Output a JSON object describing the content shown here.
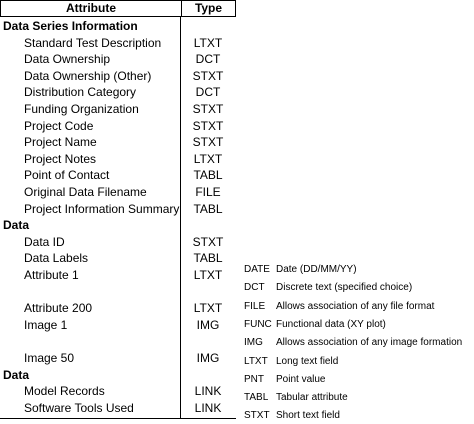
{
  "table": {
    "headers": {
      "attribute": "Attribute",
      "type": "Type"
    },
    "rows": [
      {
        "kind": "section",
        "attribute": "Data Series Information",
        "type": ""
      },
      {
        "kind": "item",
        "attribute": "Standard Test Description",
        "type": "LTXT"
      },
      {
        "kind": "item",
        "attribute": "Data Ownership",
        "type": "DCT"
      },
      {
        "kind": "item",
        "attribute": "Data Ownership (Other)",
        "type": "STXT"
      },
      {
        "kind": "item",
        "attribute": "Distribution Category",
        "type": "DCT"
      },
      {
        "kind": "item",
        "attribute": "Funding Organization",
        "type": "STXT"
      },
      {
        "kind": "item",
        "attribute": "Project Code",
        "type": "STXT"
      },
      {
        "kind": "item",
        "attribute": "Project Name",
        "type": "STXT"
      },
      {
        "kind": "item",
        "attribute": "Project Notes",
        "type": "LTXT"
      },
      {
        "kind": "item",
        "attribute": "Point of Contact",
        "type": "TABL"
      },
      {
        "kind": "item",
        "attribute": "Original Data Filename",
        "type": "FILE"
      },
      {
        "kind": "item",
        "attribute": "Project Information Summary",
        "type": "TABL"
      },
      {
        "kind": "section",
        "attribute": "Data",
        "type": ""
      },
      {
        "kind": "item",
        "attribute": "Data ID",
        "type": "STXT"
      },
      {
        "kind": "item",
        "attribute": "Data Labels",
        "type": "TABL"
      },
      {
        "kind": "item",
        "attribute": "Attribute 1",
        "type": "LTXT"
      },
      {
        "kind": "gap",
        "attribute": "",
        "type": ""
      },
      {
        "kind": "item",
        "attribute": "Attribute 200",
        "type": "LTXT"
      },
      {
        "kind": "item",
        "attribute": "Image 1",
        "type": "IMG"
      },
      {
        "kind": "gap",
        "attribute": "",
        "type": ""
      },
      {
        "kind": "item",
        "attribute": "Image 50",
        "type": "IMG"
      },
      {
        "kind": "section",
        "attribute": "Data",
        "type": ""
      },
      {
        "kind": "item",
        "attribute": "Model Records",
        "type": "LINK"
      },
      {
        "kind": "item",
        "attribute": "Software Tools Used",
        "type": "LINK"
      }
    ]
  },
  "legend": [
    {
      "code": "DATE",
      "desc": "Date (DD/MM/YY)"
    },
    {
      "code": "DCT",
      "desc": "Discrete text (specified choice)"
    },
    {
      "code": "FILE",
      "desc": "Allows association of any file format"
    },
    {
      "code": "FUNC",
      "desc": "Functional data (XY plot)"
    },
    {
      "code": "IMG",
      "desc": "Allows association of any image formation"
    },
    {
      "code": "LTXT",
      "desc": "Long text field"
    },
    {
      "code": "PNT",
      "desc": "Point value"
    },
    {
      "code": "TABL",
      "desc": "Tabular attribute"
    },
    {
      "code": "STXT",
      "desc": "Short text field"
    }
  ]
}
